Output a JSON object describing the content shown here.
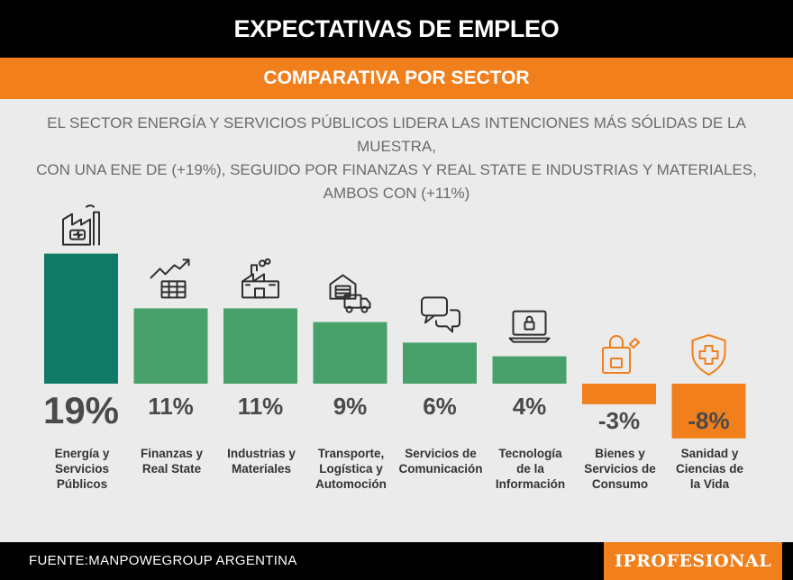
{
  "header": {
    "title": "EXPECTATIVAS DE EMPLEO",
    "subtitle": "COMPARATIVA POR SECTOR"
  },
  "description": {
    "line1": "EL SECTOR ENERGÍA Y SERVICIOS PÚBLICOS LIDERA LAS INTENCIONES MÁS SÓLIDAS DE LA MUESTRA,",
    "line2": "CON UNA ENE DE (+19%), SEGUIDO POR FINANZAS Y REAL STATE E INDUSTRIAS Y MATERIALES,",
    "line3": "AMBOS CON (+11%)"
  },
  "footer": {
    "source": "FUENTE:MANPOWEGROUP ARGENTINA",
    "brand": "IPROFESIONAL"
  },
  "colors": {
    "leader": "#0f7a66",
    "positive": "#48a16a",
    "negative": "#f07f1c",
    "value_text": "#4a4a4a",
    "label_text": "#333333"
  },
  "chart_data": {
    "type": "bar",
    "categories": [
      [
        "Energía y",
        "Servicios",
        "Públicos"
      ],
      [
        "Finanzas y",
        "Real State"
      ],
      [
        "Industrias y",
        "Materiales"
      ],
      [
        "Transporte,",
        "Logística y",
        "Automoción"
      ],
      [
        "Servicios de",
        "Comunicación"
      ],
      [
        "Tecnología",
        "de la",
        "Información"
      ],
      [
        "Bienes y",
        "Servicios de",
        "Consumo"
      ],
      [
        "Sanidad y",
        "Ciencias de",
        "la Vida"
      ]
    ],
    "values": [
      19,
      11,
      11,
      9,
      6,
      4,
      -3,
      -8
    ],
    "value_labels": [
      "19%",
      "11%",
      "11%",
      "9%",
      "6%",
      "4%",
      "-3%",
      "-8%"
    ],
    "icons": [
      "factory-battery-icon",
      "chart-table-icon",
      "factory-icon",
      "truck-warehouse-icon",
      "chat-bubbles-icon",
      "laptop-lock-icon",
      "shopping-bag-icon",
      "health-shield-icon"
    ],
    "unit": "%"
  }
}
